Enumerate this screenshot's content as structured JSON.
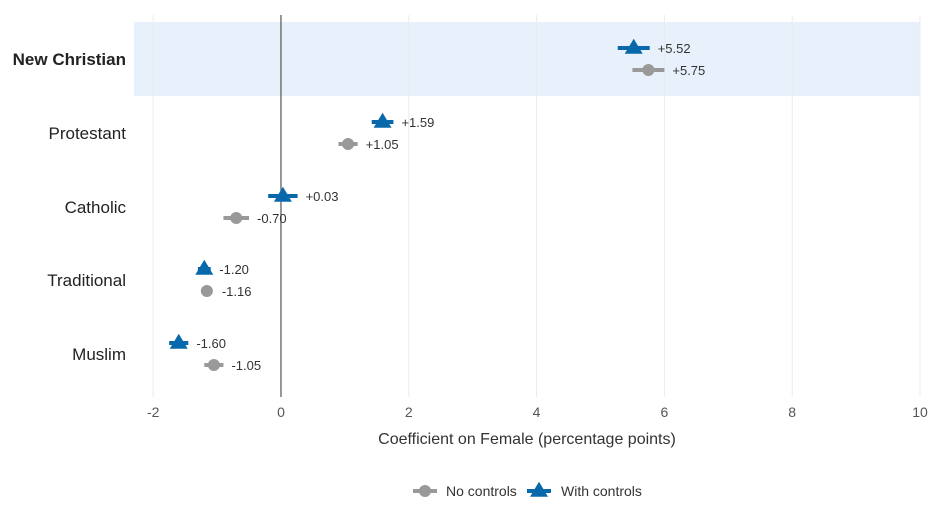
{
  "chart_data": {
    "type": "scatter",
    "xlabel": "Coefficient on Female (percentage points)",
    "xlim": [
      -2.3,
      10
    ],
    "xticks": [
      -2,
      0,
      2,
      4,
      6,
      8,
      10
    ],
    "tick_labels": [
      "-2",
      "0",
      "2",
      "4",
      "6",
      "8",
      "10"
    ],
    "categories": [
      "New Christian",
      "Protestant",
      "Catholic",
      "Traditional",
      "Muslim"
    ],
    "highlight_category": "New Christian",
    "reference_line_x": 0,
    "grid": true,
    "legend_position": "bottom",
    "series": [
      {
        "name": "No controls",
        "marker": "circle",
        "color": "#999999",
        "values": [
          5.75,
          1.05,
          -0.7,
          -1.16,
          -1.05
        ],
        "labels": [
          "+5.75",
          "+1.05",
          "-0.70",
          "-1.16",
          "-1.05"
        ],
        "ci": [
          [
            5.5,
            6.0
          ],
          [
            0.9,
            1.2
          ],
          [
            -0.9,
            -0.5
          ],
          [
            -1.25,
            -1.07
          ],
          [
            -1.2,
            -0.9
          ]
        ]
      },
      {
        "name": "With controls",
        "marker": "triangle",
        "color": "#0868ac",
        "values": [
          5.52,
          1.59,
          0.03,
          -1.2,
          -1.6
        ],
        "labels": [
          "+5.52",
          "+1.59",
          "+0.03",
          "-1.20",
          "-1.60"
        ],
        "ci": [
          [
            5.27,
            5.77
          ],
          [
            1.42,
            1.76
          ],
          [
            -0.2,
            0.26
          ],
          [
            -1.3,
            -1.1
          ],
          [
            -1.75,
            -1.45
          ]
        ]
      }
    ],
    "highlight_color": "#e8f1fb"
  }
}
